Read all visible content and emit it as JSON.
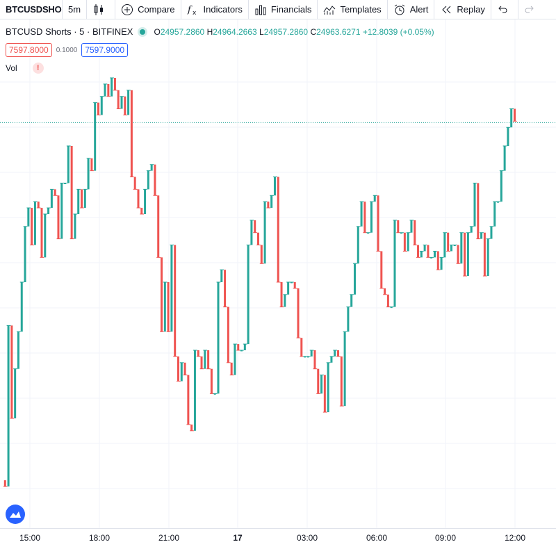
{
  "toolbar": {
    "symbol": "BTCUSDSHORTS",
    "interval": "5m",
    "compare_label": "Compare",
    "indicators_label": "Indicators",
    "financials_label": "Financials",
    "templates_label": "Templates",
    "alert_label": "Alert",
    "replay_label": "Replay"
  },
  "legend": {
    "title": "BTCUSD Shorts · 5 · BITFINEX",
    "open_label": "O",
    "open": "24957.2860",
    "high_label": "H",
    "high": "24964.2663",
    "low_label": "L",
    "low": "24957.2860",
    "close_label": "C",
    "close": "24963.6271",
    "change": "+12.8039 (+0.05%)"
  },
  "trade": {
    "sell_price": "7597.8000",
    "spread": "0.1000",
    "buy_price": "7597.9000"
  },
  "volume": {
    "label": "Vol",
    "warning": "!"
  },
  "colors": {
    "up": "#26a69a",
    "down": "#ef5350",
    "grid": "#f0f3fa",
    "last_line": "#26a69a"
  },
  "chart_data": {
    "type": "line",
    "x_ticks": [
      "15:00",
      "18:00",
      "21:00",
      "17",
      "03:00",
      "06:00",
      "09:00",
      "12:00"
    ],
    "last_price_line": 24963.6271,
    "grid": true,
    "points": [
      [
        0,
        438
      ],
      [
        1,
        437
      ],
      [
        2,
        463
      ],
      [
        3,
        448
      ],
      [
        4,
        456
      ],
      [
        5,
        462
      ],
      [
        6,
        470
      ],
      [
        7,
        479
      ],
      [
        8,
        482
      ],
      [
        9,
        476
      ],
      [
        10,
        483
      ],
      [
        11,
        482
      ],
      [
        12,
        474
      ],
      [
        13,
        481
      ],
      [
        14,
        482
      ],
      [
        15,
        485
      ],
      [
        16,
        484
      ],
      [
        17,
        477
      ],
      [
        18,
        486
      ],
      [
        19,
        486
      ],
      [
        20,
        492
      ],
      [
        21,
        477
      ],
      [
        22,
        481
      ],
      [
        23,
        485
      ],
      [
        24,
        482
      ],
      [
        25,
        485
      ],
      [
        26,
        490
      ],
      [
        27,
        488
      ],
      [
        28,
        499
      ],
      [
        29,
        497
      ],
      [
        30,
        500
      ],
      [
        31,
        502
      ],
      [
        32,
        500
      ],
      [
        33,
        503
      ],
      [
        34,
        501
      ],
      [
        35,
        498
      ],
      [
        36,
        500
      ],
      [
        37,
        497
      ],
      [
        38,
        501
      ],
      [
        39,
        487
      ],
      [
        40,
        485
      ],
      [
        41,
        482
      ],
      [
        42,
        481
      ],
      [
        43,
        485
      ],
      [
        44,
        488
      ],
      [
        45,
        489
      ],
      [
        46,
        484
      ],
      [
        47,
        474
      ],
      [
        48,
        462
      ],
      [
        49,
        470
      ],
      [
        50,
        462
      ],
      [
        51,
        476
      ],
      [
        52,
        458
      ],
      [
        53,
        454
      ],
      [
        54,
        457
      ],
      [
        55,
        455
      ],
      [
        56,
        447
      ],
      [
        57,
        446
      ],
      [
        58,
        459
      ],
      [
        59,
        458
      ],
      [
        60,
        456
      ],
      [
        61,
        459
      ],
      [
        62,
        456
      ],
      [
        63,
        452
      ],
      [
        64,
        452
      ],
      [
        65,
        470
      ],
      [
        66,
        472
      ],
      [
        67,
        466
      ],
      [
        68,
        457
      ],
      [
        69,
        455
      ],
      [
        70,
        460
      ],
      [
        71,
        459
      ],
      [
        72,
        459
      ],
      [
        73,
        460
      ],
      [
        74,
        476
      ],
      [
        75,
        480
      ],
      [
        76,
        478
      ],
      [
        77,
        476
      ],
      [
        78,
        473
      ],
      [
        79,
        483
      ],
      [
        80,
        482
      ],
      [
        81,
        484
      ],
      [
        82,
        487
      ],
      [
        83,
        470
      ],
      [
        84,
        466
      ],
      [
        85,
        468
      ],
      [
        86,
        470
      ],
      [
        87,
        470
      ],
      [
        88,
        469
      ],
      [
        89,
        461
      ],
      [
        90,
        458
      ],
      [
        91,
        458
      ],
      [
        92,
        458
      ],
      [
        93,
        459
      ],
      [
        94,
        456
      ],
      [
        95,
        452
      ],
      [
        96,
        455
      ],
      [
        97,
        449
      ],
      [
        98,
        457
      ],
      [
        99,
        458
      ],
      [
        100,
        459
      ],
      [
        101,
        458
      ],
      [
        102,
        450
      ],
      [
        103,
        462
      ],
      [
        104,
        466
      ],
      [
        105,
        468
      ],
      [
        106,
        473
      ],
      [
        107,
        479
      ],
      [
        108,
        483
      ],
      [
        109,
        478
      ],
      [
        110,
        478
      ],
      [
        111,
        483
      ],
      [
        112,
        484
      ],
      [
        113,
        475
      ],
      [
        114,
        469
      ],
      [
        115,
        468
      ],
      [
        116,
        466
      ],
      [
        117,
        466
      ],
      [
        118,
        480
      ],
      [
        119,
        478
      ],
      [
        120,
        478
      ],
      [
        121,
        475
      ],
      [
        122,
        478
      ],
      [
        123,
        480
      ],
      [
        124,
        476
      ],
      [
        125,
        474
      ],
      [
        126,
        475
      ],
      [
        127,
        476
      ],
      [
        128,
        474
      ],
      [
        129,
        474
      ],
      [
        130,
        475
      ],
      [
        131,
        472
      ],
      [
        132,
        474
      ],
      [
        133,
        478
      ],
      [
        134,
        475
      ],
      [
        135,
        476
      ],
      [
        136,
        476
      ],
      [
        137,
        473
      ],
      [
        138,
        478
      ],
      [
        139,
        471
      ],
      [
        140,
        478
      ],
      [
        141,
        479
      ],
      [
        142,
        486
      ],
      [
        143,
        477
      ],
      [
        144,
        478
      ],
      [
        145,
        471
      ],
      [
        146,
        477
      ],
      [
        147,
        479
      ],
      [
        148,
        483
      ],
      [
        149,
        483
      ],
      [
        150,
        488
      ],
      [
        151,
        492
      ],
      [
        152,
        495
      ],
      [
        153,
        498
      ],
      [
        154,
        496
      ]
    ]
  }
}
